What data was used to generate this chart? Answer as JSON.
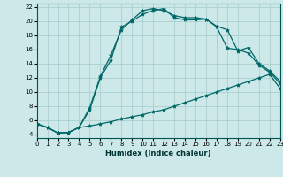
{
  "xlabel": "Humidex (Indice chaleur)",
  "bg_color": "#cce8e8",
  "grid_color": "#aacece",
  "line_color": "#006868",
  "xlim": [
    0,
    23
  ],
  "ylim": [
    3.5,
    22.5
  ],
  "xticks": [
    0,
    1,
    2,
    3,
    4,
    5,
    6,
    7,
    8,
    9,
    10,
    11,
    12,
    13,
    14,
    15,
    16,
    17,
    18,
    19,
    20,
    21,
    22,
    23
  ],
  "yticks": [
    4,
    6,
    8,
    10,
    12,
    14,
    16,
    18,
    20,
    22
  ],
  "line1_x": [
    0,
    1,
    2,
    3,
    4,
    5,
    6,
    7,
    8,
    9,
    10,
    11,
    12,
    13,
    14,
    15,
    16,
    17,
    18,
    19,
    20,
    21,
    22,
    23
  ],
  "line1_y": [
    5.5,
    5.0,
    4.2,
    4.3,
    5.0,
    5.2,
    5.5,
    5.8,
    6.2,
    6.5,
    6.8,
    7.2,
    7.5,
    8.0,
    8.5,
    9.0,
    9.5,
    10.0,
    10.5,
    11.0,
    11.5,
    12.0,
    12.5,
    10.5
  ],
  "line2_x": [
    0,
    1,
    2,
    3,
    4,
    5,
    6,
    7,
    8,
    9,
    10,
    11,
    12,
    13,
    14,
    15,
    16,
    17,
    18,
    19,
    20,
    21,
    22,
    23
  ],
  "line2_y": [
    5.5,
    5.0,
    4.2,
    4.3,
    5.0,
    7.8,
    12.2,
    15.2,
    18.8,
    20.2,
    21.5,
    21.8,
    21.5,
    20.8,
    20.5,
    20.5,
    20.3,
    19.3,
    18.8,
    15.8,
    16.3,
    14.0,
    13.0,
    11.5
  ],
  "line3_x": [
    0,
    1,
    2,
    3,
    4,
    5,
    6,
    7,
    8,
    9,
    10,
    11,
    12,
    13,
    14,
    15,
    16,
    17,
    18,
    19,
    20,
    21,
    22,
    23
  ],
  "line3_y": [
    5.5,
    5.0,
    4.2,
    4.3,
    5.0,
    7.5,
    12.0,
    14.5,
    19.2,
    20.0,
    21.0,
    21.5,
    21.8,
    20.5,
    20.2,
    20.2,
    20.3,
    19.2,
    16.2,
    16.0,
    15.5,
    13.8,
    12.8,
    11.2
  ],
  "marker": "*",
  "marker_size": 3.0,
  "lw": 0.9
}
